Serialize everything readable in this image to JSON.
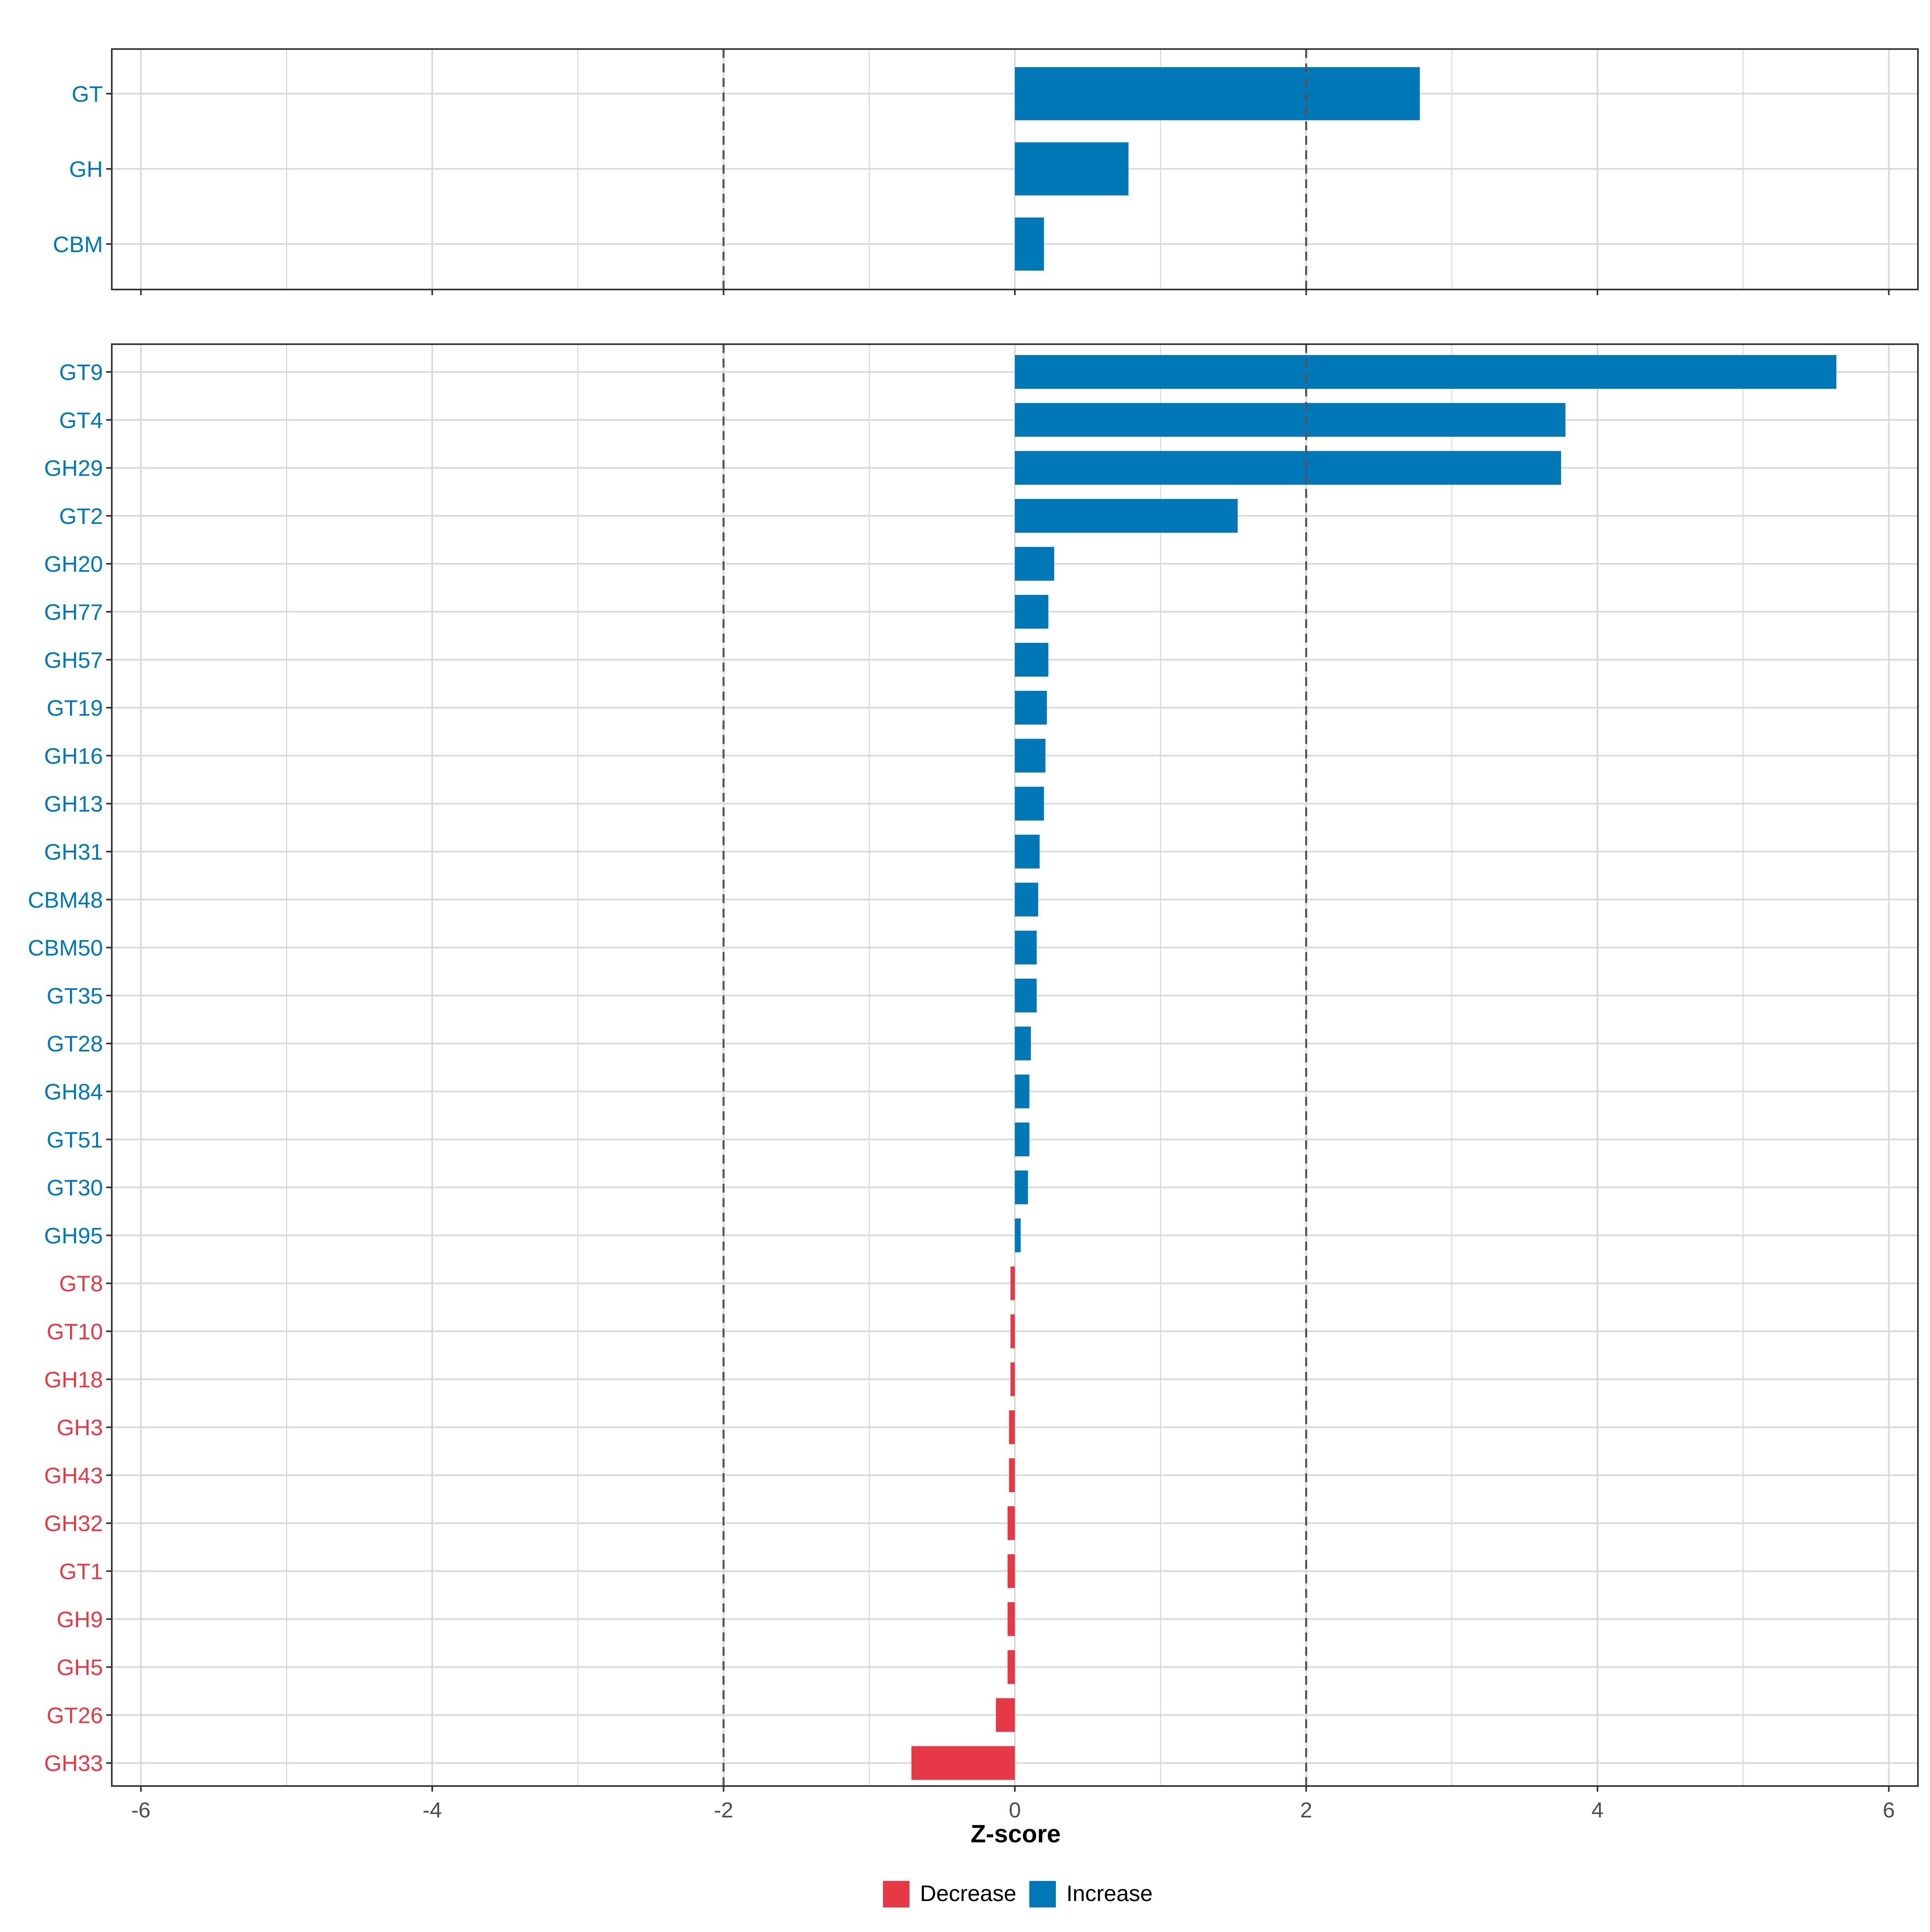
{
  "chart_data": [
    {
      "type": "bar",
      "orientation": "horizontal",
      "categories": [
        "GT",
        "GH",
        "CBM"
      ],
      "values": [
        2.78,
        0.78,
        0.2
      ],
      "title": "",
      "xlabel": "",
      "ylabel": "",
      "xlim": [
        -6.2,
        6.2
      ],
      "xticks": [
        -6,
        -4,
        -2,
        0,
        2,
        4,
        6
      ],
      "reference_lines": [
        -2,
        2
      ],
      "grid": true,
      "show_x_tick_labels": false
    },
    {
      "type": "bar",
      "orientation": "horizontal",
      "categories": [
        "GT9",
        "GT4",
        "GH29",
        "GT2",
        "GH20",
        "GH77",
        "GH57",
        "GT19",
        "GH16",
        "GH13",
        "GH31",
        "CBM48",
        "CBM50",
        "GT35",
        "GT28",
        "GH84",
        "GT51",
        "GT30",
        "GH95",
        "GT8",
        "GT10",
        "GH18",
        "GH3",
        "GH43",
        "GH32",
        "GT1",
        "GH9",
        "GH5",
        "GT26",
        "GH33"
      ],
      "values": [
        5.64,
        3.78,
        3.75,
        1.53,
        0.27,
        0.23,
        0.23,
        0.22,
        0.21,
        0.2,
        0.17,
        0.16,
        0.15,
        0.15,
        0.11,
        0.1,
        0.1,
        0.09,
        0.04,
        -0.03,
        -0.03,
        -0.03,
        -0.04,
        -0.04,
        -0.05,
        -0.05,
        -0.05,
        -0.05,
        -0.13,
        -0.71
      ],
      "title": "",
      "xlabel": "Z-score",
      "ylabel": "",
      "xlim": [
        -6.2,
        6.2
      ],
      "xticks": [
        -6,
        -4,
        -2,
        0,
        2,
        4,
        6
      ],
      "xtick_labels": [
        "-6",
        "-4",
        "-2",
        "0",
        "2",
        "4",
        "6"
      ],
      "reference_lines": [
        -2,
        2
      ],
      "grid": true
    }
  ],
  "legend": {
    "placement": "bottom",
    "items": [
      {
        "label": "Decrease",
        "color": "#E63946"
      },
      {
        "label": "Increase",
        "color": "#0077B6"
      }
    ]
  },
  "colors": {
    "increase": "#0077B6",
    "decrease": "#E63946",
    "grid": "#D9D9D9",
    "reference_line": "#555555",
    "panel_border": "#333333"
  }
}
